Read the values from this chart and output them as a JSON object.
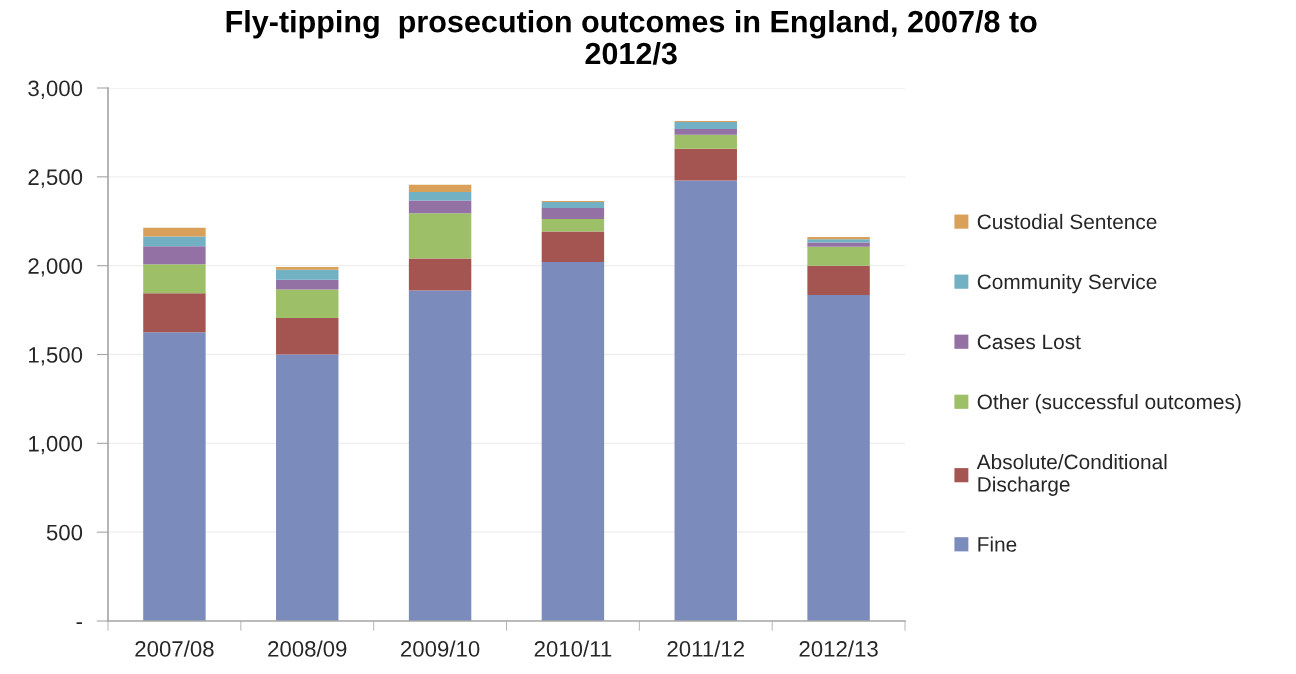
{
  "chart_data": {
    "type": "bar",
    "title": "Fly-tipping  prosecution outcomes in England, 2007/8 to 2012/3",
    "categories": [
      "2007/08",
      "2008/09",
      "2009/10",
      "2010/11",
      "2011/12",
      "2012/13"
    ],
    "stacked": true,
    "series": [
      {
        "name": "Fine",
        "color": "#7b8bbb",
        "values": [
          1625,
          1500,
          1860,
          2020,
          2480,
          1835
        ]
      },
      {
        "name": "Absolute/Conditional Discharge",
        "color": "#a55551",
        "values": [
          220,
          205,
          180,
          173,
          178,
          164
        ]
      },
      {
        "name": "Other (successful outcomes)",
        "color": "#9dbf68",
        "values": [
          163,
          161,
          255,
          69,
          79,
          108
        ]
      },
      {
        "name": "Cases Lost",
        "color": "#9471a5",
        "values": [
          101,
          55,
          72,
          62,
          32,
          23
        ]
      },
      {
        "name": "Community Service",
        "color": "#72b0c4",
        "values": [
          55,
          56,
          47,
          34,
          39,
          19
        ]
      },
      {
        "name": "Custodial Sentence",
        "color": "#d9a05a",
        "values": [
          49,
          15,
          41,
          6,
          6,
          13
        ]
      }
    ],
    "ylim": [
      0,
      3000
    ],
    "yticks": [
      {
        "value": 0,
        "label": "-"
      },
      500,
      {
        "value": 1000,
        "label": "1,000"
      },
      {
        "value": 1500,
        "label": "1,500"
      },
      {
        "value": 2000,
        "label": "2,000"
      },
      {
        "value": 2500,
        "label": "2,500"
      },
      {
        "value": 3000,
        "label": "3,000"
      }
    ],
    "grid": "y",
    "legend": "right"
  }
}
